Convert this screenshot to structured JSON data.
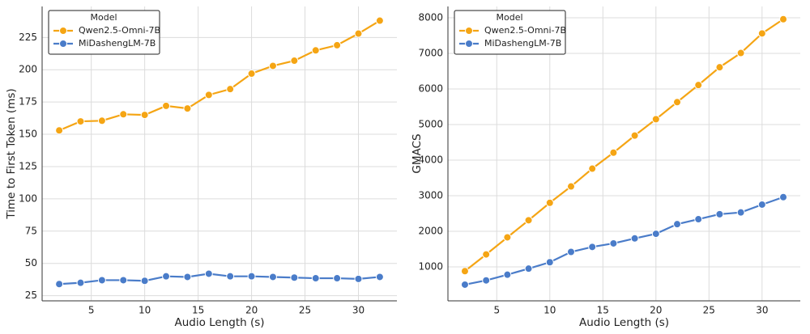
{
  "chart_data": [
    {
      "type": "line",
      "xlabel": "Audio Length (s)",
      "ylabel": "Time to First Token (ms)",
      "x": [
        2,
        4,
        6,
        8,
        10,
        12,
        14,
        16,
        18,
        20,
        22,
        24,
        26,
        28,
        30,
        32
      ],
      "xlim": [
        0.4,
        33.6
      ],
      "xticks": [
        5,
        10,
        15,
        20,
        25,
        30
      ],
      "ylim": [
        21,
        249
      ],
      "yticks": [
        25,
        50,
        75,
        100,
        125,
        150,
        175,
        200,
        225
      ],
      "grid": true,
      "legend_title": "Model",
      "legend": "upper left",
      "series": [
        {
          "name": "Qwen2.5-Omni-7B",
          "color": "#f5a514",
          "values": [
            153,
            160,
            160.5,
            165.5,
            165,
            172,
            170,
            180.5,
            185,
            197,
            203,
            207,
            215,
            219,
            228,
            238
          ]
        },
        {
          "name": "MiDashengLM-7B",
          "color": "#4a7cc9",
          "values": [
            34,
            35,
            37,
            37,
            36.5,
            40,
            39.5,
            42,
            40,
            40,
            39.5,
            39,
            38.5,
            38.5,
            38,
            39.5
          ]
        }
      ]
    },
    {
      "type": "line",
      "xlabel": "Audio Length (s)",
      "ylabel": "GMACS",
      "x": [
        2,
        4,
        6,
        8,
        10,
        12,
        14,
        16,
        18,
        20,
        22,
        24,
        26,
        28,
        30,
        32
      ],
      "xlim": [
        0.4,
        33.6
      ],
      "xticks": [
        5,
        10,
        15,
        20,
        25,
        30
      ],
      "ylim": [
        45,
        8318
      ],
      "yticks": [
        1000,
        2000,
        3000,
        4000,
        5000,
        6000,
        7000,
        8000
      ],
      "grid": true,
      "legend_title": "Model",
      "legend": "upper left",
      "series": [
        {
          "name": "Qwen2.5-Omni-7B",
          "color": "#f5a514",
          "values": [
            880,
            1350,
            1830,
            2310,
            2800,
            3260,
            3760,
            4210,
            4690,
            5150,
            5630,
            6110,
            6610,
            7010,
            7560,
            7960
          ]
        },
        {
          "name": "MiDashengLM-7B",
          "color": "#4a7cc9",
          "values": [
            500,
            620,
            780,
            950,
            1130,
            1420,
            1560,
            1660,
            1800,
            1930,
            2200,
            2340,
            2480,
            2530,
            2750,
            2960
          ]
        }
      ]
    }
  ]
}
